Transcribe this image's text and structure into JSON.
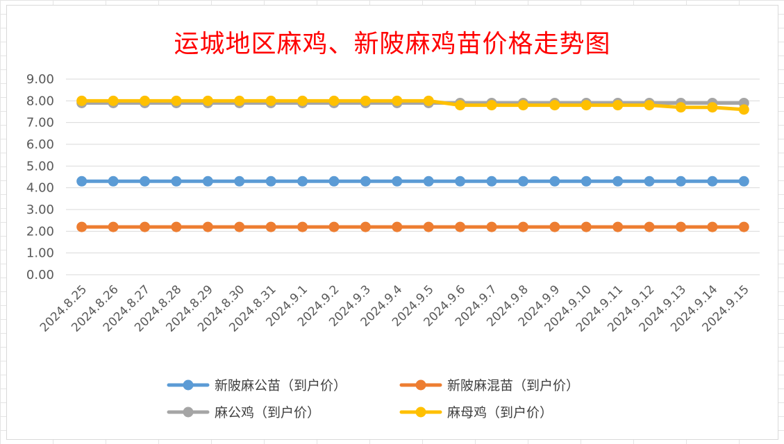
{
  "chart_data": {
    "type": "line",
    "title": "运城地区麻鸡、新陂麻鸡苗价格走势图",
    "categories": [
      "2024.8.25",
      "2024.8.26",
      "2024.8.27",
      "2024.8.28",
      "2024.8.29",
      "2024.8.30",
      "2024.8.31",
      "2024.9.1",
      "2024.9.2",
      "2024.9.3",
      "2024.9.4",
      "2024.9.5",
      "2024.9.6",
      "2024.9.7",
      "2024.9.8",
      "2024.9.9",
      "2024.9.10",
      "2024.9.11",
      "2024.9.12",
      "2024.9.13",
      "2024.9.14",
      "2024.9.15"
    ],
    "ylim": [
      0,
      9
    ],
    "yticks": [
      "0.00",
      "1.00",
      "2.00",
      "3.00",
      "4.00",
      "5.00",
      "6.00",
      "7.00",
      "8.00",
      "9.00"
    ],
    "grid": true,
    "legend_position": "bottom",
    "series": [
      {
        "name": "新陂麻公苗（到户价）",
        "color": "#5b9bd5",
        "values": [
          4.3,
          4.3,
          4.3,
          4.3,
          4.3,
          4.3,
          4.3,
          4.3,
          4.3,
          4.3,
          4.3,
          4.3,
          4.3,
          4.3,
          4.3,
          4.3,
          4.3,
          4.3,
          4.3,
          4.3,
          4.3,
          4.3
        ]
      },
      {
        "name": "新陂麻混苗（到户价）",
        "color": "#ed7d31",
        "values": [
          2.2,
          2.2,
          2.2,
          2.2,
          2.2,
          2.2,
          2.2,
          2.2,
          2.2,
          2.2,
          2.2,
          2.2,
          2.2,
          2.2,
          2.2,
          2.2,
          2.2,
          2.2,
          2.2,
          2.2,
          2.2,
          2.2
        ]
      },
      {
        "name": "麻公鸡（到户价）",
        "color": "#a5a5a5",
        "values": [
          7.9,
          7.9,
          7.9,
          7.9,
          7.9,
          7.9,
          7.9,
          7.9,
          7.9,
          7.9,
          7.9,
          7.9,
          7.9,
          7.9,
          7.9,
          7.9,
          7.9,
          7.9,
          7.9,
          7.9,
          7.9,
          7.9
        ]
      },
      {
        "name": "麻母鸡（到户价）",
        "color": "#ffc000",
        "values": [
          8.0,
          8.0,
          8.0,
          8.0,
          8.0,
          8.0,
          8.0,
          8.0,
          8.0,
          8.0,
          8.0,
          8.0,
          7.8,
          7.8,
          7.8,
          7.8,
          7.8,
          7.8,
          7.8,
          7.7,
          7.7,
          7.6
        ]
      }
    ]
  }
}
